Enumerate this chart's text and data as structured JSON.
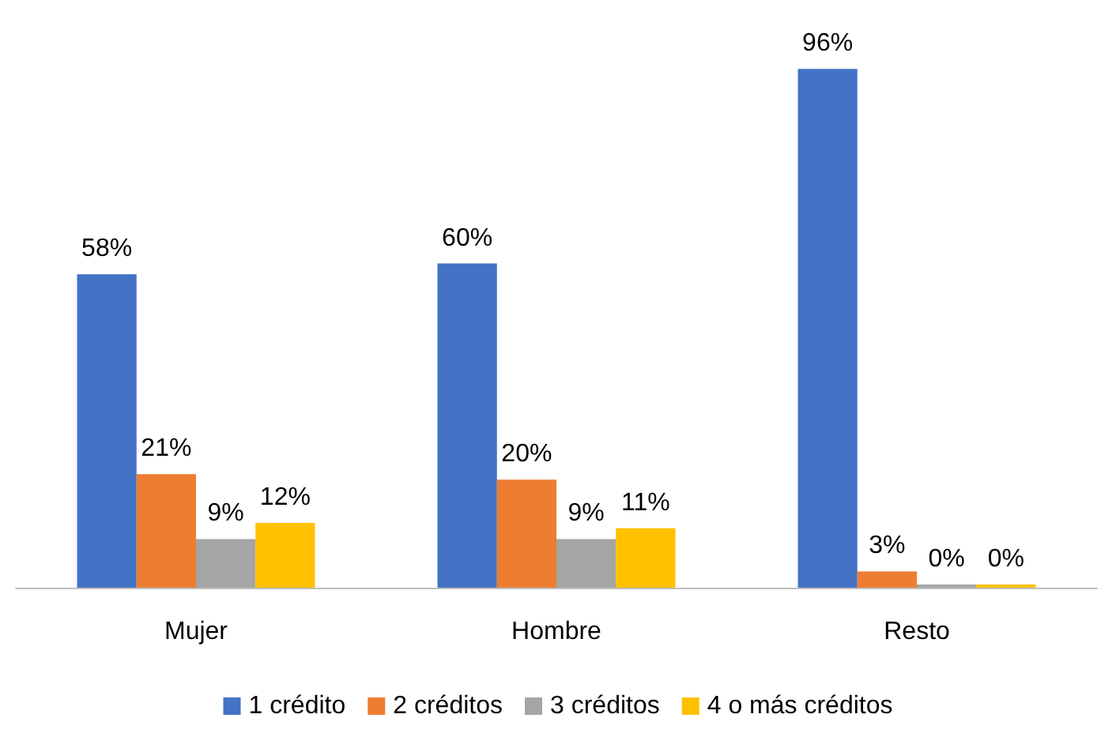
{
  "chart_data": {
    "type": "bar",
    "categories": [
      "Mujer",
      "Hombre",
      "Resto"
    ],
    "series": [
      {
        "name": "1 crédito",
        "color": "#4472c4",
        "values": [
          58,
          60,
          96
        ],
        "value_labels": [
          "58%",
          "60%",
          "96%"
        ]
      },
      {
        "name": "2 créditos",
        "color": "#ed7d31",
        "values": [
          21,
          20,
          3
        ],
        "value_labels": [
          "21%",
          "20%",
          "3%"
        ]
      },
      {
        "name": "3 créditos",
        "color": "#a5a5a5",
        "values": [
          9,
          9,
          0
        ],
        "value_labels": [
          "9%",
          "9%",
          "0%"
        ]
      },
      {
        "name": "4 o más créditos",
        "color": "#ffc000",
        "values": [
          12,
          11,
          0
        ],
        "value_labels": [
          "12%",
          "11%",
          "0%"
        ]
      }
    ],
    "legend": "bottom"
  }
}
